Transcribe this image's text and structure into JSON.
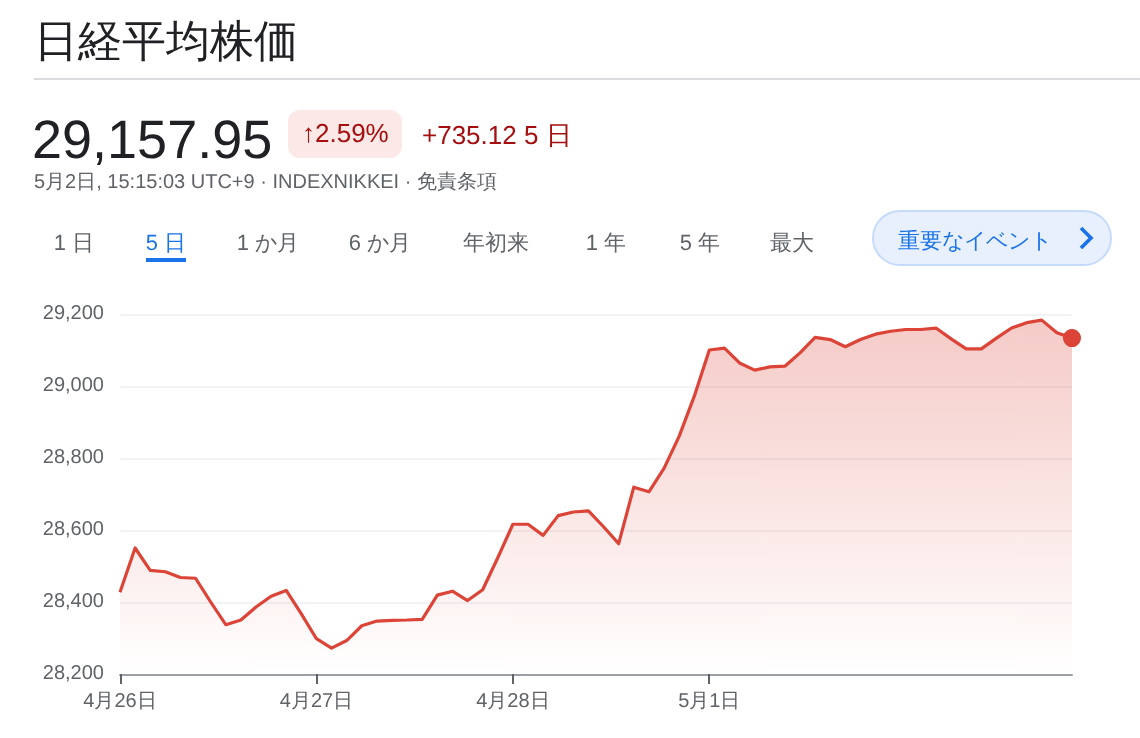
{
  "chart_data": {
    "type": "area",
    "title": "日経平均株価",
    "subtitle": "5月2日, 15:15:03 UTC+9 · INDEXNIKKEI · 免責条項",
    "annotations": [
      "29,157.95",
      "↑2.59%",
      "+735.12 5 日",
      "1 日",
      "5 日",
      "1 か月",
      "6 か月",
      "年初来",
      "1 年",
      "5 年",
      "最大",
      "重要なイベント"
    ],
    "categories": [
      "4月26日",
      null,
      null,
      null,
      null,
      null,
      null,
      null,
      null,
      null,
      null,
      null,
      null,
      "4月27日",
      null,
      null,
      null,
      null,
      null,
      null,
      null,
      null,
      null,
      null,
      null,
      null,
      "4月28日",
      null,
      null,
      null,
      null,
      null,
      null,
      null,
      null,
      null,
      null,
      null,
      null,
      "5月1日",
      null,
      null,
      null,
      null,
      null,
      null,
      null,
      null,
      null,
      null,
      null,
      null,
      null,
      null,
      null,
      null,
      null,
      null,
      null,
      null,
      null,
      null,
      null,
      null
    ],
    "series": [
      {
        "color": "#db4437",
        "values": [
          28427,
          28550,
          28488,
          28484,
          28468,
          28466,
          28400,
          28337,
          28350,
          28386,
          28416,
          28432,
          28367,
          28298,
          28272,
          28293,
          28334,
          28347,
          28349,
          28350,
          28352,
          28419,
          28430,
          28404,
          28434,
          28523,
          28616,
          28616,
          28585,
          28640,
          28650,
          28653,
          28609,
          28562,
          28719,
          28706,
          28771,
          28860,
          28971,
          29100,
          29105,
          29064,
          29044,
          29053,
          29055,
          29092,
          29135,
          29129,
          29109,
          29129,
          29144,
          29152,
          29157,
          29157,
          29161,
          29131,
          29103,
          29103,
          29133,
          29161,
          29176,
          29183,
          29148,
          29133
        ]
      }
    ],
    "ylim": [
      28200,
      29200
    ],
    "yticks": [
      {
        "value": 28200,
        "label": "28,200"
      },
      {
        "value": 28400,
        "label": "28,400"
      },
      {
        "value": 28600,
        "label": "28,600"
      },
      {
        "value": 28800,
        "label": "28,800"
      },
      {
        "value": 29000,
        "label": "29,000"
      },
      {
        "value": 29200,
        "label": "29,200"
      }
    ],
    "grid": "y"
  }
}
